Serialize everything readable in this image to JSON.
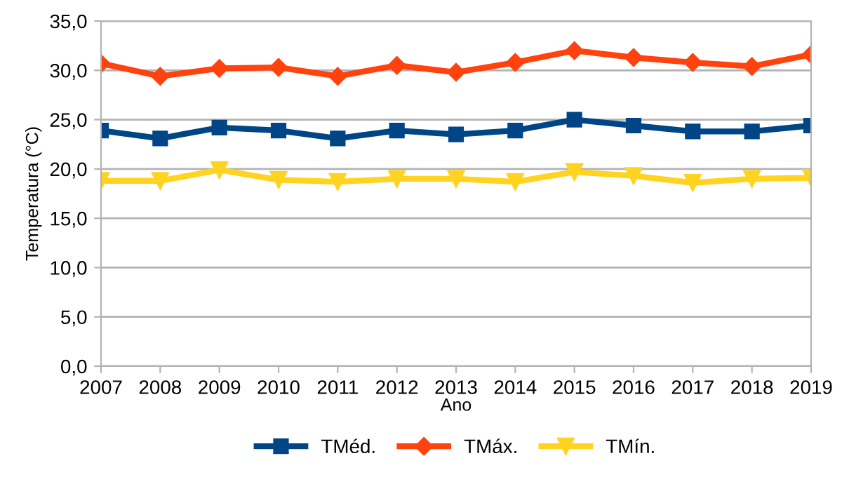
{
  "chart_data": {
    "type": "line",
    "xlabel": "Ano",
    "ylabel": "Temperatura (°C)",
    "categories": [
      "2007",
      "2008",
      "2009",
      "2010",
      "2011",
      "2012",
      "2013",
      "2014",
      "2015",
      "2016",
      "2017",
      "2018",
      "2019"
    ],
    "series": [
      {
        "name": "TMéd.",
        "color": "#004586",
        "marker": "square",
        "values": [
          23.9,
          23.1,
          24.2,
          23.9,
          23.1,
          23.9,
          23.5,
          23.9,
          25.0,
          24.4,
          23.8,
          23.8,
          24.4
        ]
      },
      {
        "name": "TMáx.",
        "color": "#ff420e",
        "marker": "diamond",
        "values": [
          30.7,
          29.4,
          30.2,
          30.3,
          29.4,
          30.5,
          29.8,
          30.8,
          32.0,
          31.3,
          30.8,
          30.4,
          31.6
        ]
      },
      {
        "name": "TMín.",
        "color": "#ffd320",
        "marker": "triangle",
        "values": [
          18.8,
          18.8,
          19.9,
          18.9,
          18.7,
          19.0,
          19.0,
          18.7,
          19.7,
          19.3,
          18.6,
          19.0,
          19.1
        ]
      }
    ],
    "ylim": [
      0,
      35
    ],
    "yticks": [
      {
        "value": 0,
        "label": "0,0"
      },
      {
        "value": 5,
        "label": "5,0"
      },
      {
        "value": 10,
        "label": "10,0"
      },
      {
        "value": 15,
        "label": "15,0"
      },
      {
        "value": 20,
        "label": "20,0"
      },
      {
        "value": 25,
        "label": "25,0"
      },
      {
        "value": 30,
        "label": "30,0"
      },
      {
        "value": 35,
        "label": "35,0"
      }
    ],
    "grid": "y",
    "legend": "bottom",
    "line_style": "solid"
  }
}
